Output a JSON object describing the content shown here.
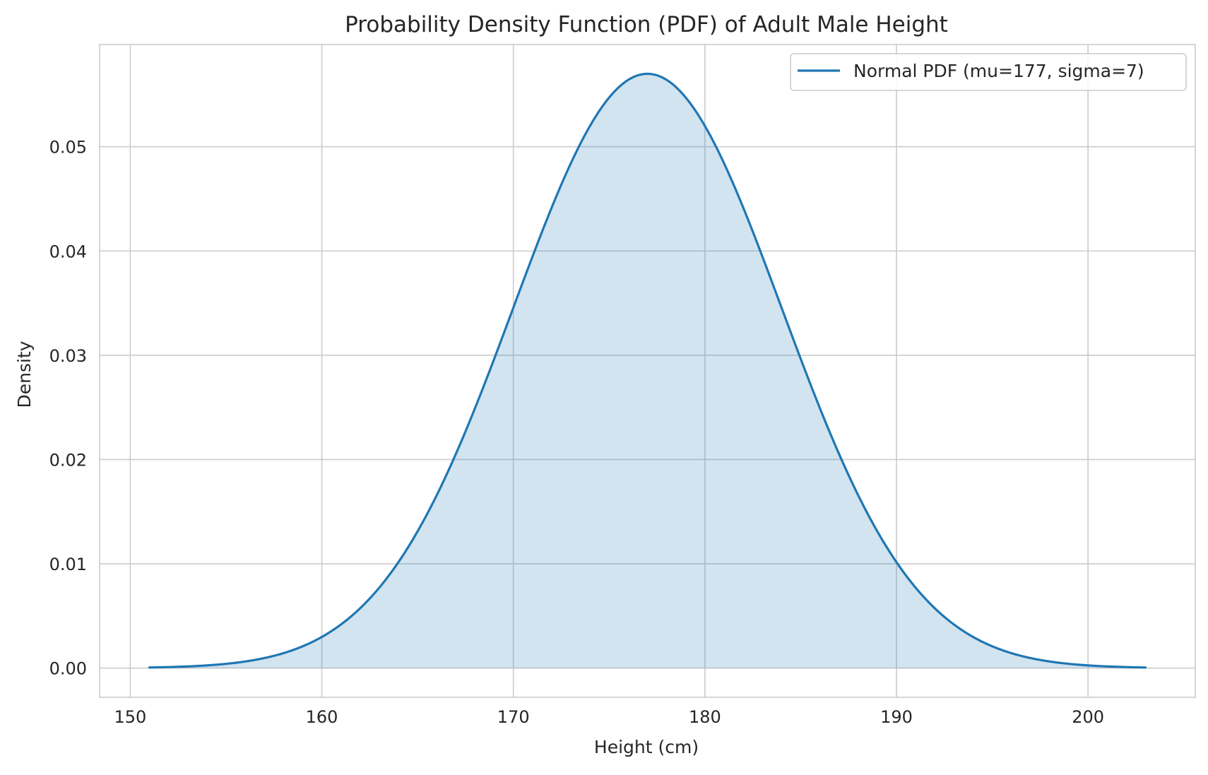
{
  "chart_data": {
    "type": "area",
    "title": "Probability Density Function (PDF) of Adult Male Height",
    "xlabel": "Height (cm)",
    "ylabel": "Density",
    "xlim": [
      148.4,
      205.6
    ],
    "ylim": [
      -0.0028,
      0.0598
    ],
    "x_ticks": [
      150,
      160,
      170,
      180,
      190,
      200
    ],
    "x_tick_labels": [
      "150",
      "160",
      "170",
      "180",
      "190",
      "200"
    ],
    "y_ticks": [
      0.0,
      0.01,
      0.02,
      0.03,
      0.04,
      0.05
    ],
    "y_tick_labels": [
      "0.00",
      "0.01",
      "0.02",
      "0.03",
      "0.04",
      "0.05"
    ],
    "grid": true,
    "legend_position": "upper-right",
    "series": [
      {
        "name": "Normal PDF (mu=177, sigma=7)",
        "distribution": "normal",
        "mu": 177,
        "sigma": 7,
        "x_range": [
          151,
          203
        ],
        "color": "#1f77b4",
        "fill_color": "#1f77b4",
        "fill_opacity": 0.2
      }
    ]
  }
}
